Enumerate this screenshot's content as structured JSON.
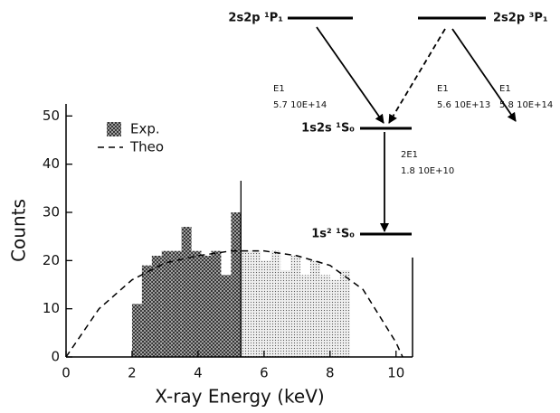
{
  "chart_data": {
    "type": "histogram",
    "xlabel": "X-ray Energy (keV)",
    "ylabel": "Counts",
    "xlim": [
      0,
      10.5
    ],
    "ylim": [
      0,
      52.5
    ],
    "xticks": [
      0,
      2,
      4,
      6,
      8,
      10
    ],
    "yticks": [
      0,
      10,
      20,
      30,
      40,
      50
    ],
    "bins": [
      2.0,
      2.3,
      2.6,
      2.9,
      3.2,
      3.5,
      3.8,
      4.1,
      4.4,
      4.7,
      5.0,
      5.3,
      5.6,
      5.9,
      6.2,
      6.5,
      6.8,
      7.1,
      7.4,
      7.7,
      8.0,
      8.3,
      8.6
    ],
    "series": [
      {
        "name": "Exp.",
        "color": "#333333",
        "values": [
          11,
          19,
          21,
          22,
          22,
          27,
          22,
          21,
          22,
          17,
          30,
          22,
          22,
          20,
          22,
          18,
          21,
          17,
          20,
          17,
          16,
          18
        ]
      }
    ],
    "divider_x": 5.3,
    "lines": [
      {
        "name": "Theo",
        "color": "#000000",
        "dashed": true,
        "x": [
          0,
          1,
          2,
          3,
          4,
          5,
          6,
          7,
          8,
          9,
          10,
          10.2
        ],
        "values": [
          0,
          10,
          16,
          19.5,
          21,
          22,
          22,
          21,
          19,
          14,
          3,
          0
        ]
      }
    ],
    "legend": "upper left"
  },
  "level_diagram": {
    "levels": [
      {
        "label": "2s2p ¹P₁"
      },
      {
        "label": "2s2p ³P₁"
      },
      {
        "label": "1s2s ¹S₀"
      },
      {
        "label": "1s² ¹S₀"
      }
    ],
    "transitions": [
      {
        "type": "E1",
        "rate": "5.7 10E+14",
        "style": "solid"
      },
      {
        "type": "E1",
        "rate": "5.6 10E+13",
        "style": "dashed"
      },
      {
        "type": "E1",
        "rate": "5.8 10E+14",
        "style": "solid"
      },
      {
        "type": "2E1",
        "rate": "1.8 10E+10",
        "style": "solid"
      }
    ]
  }
}
